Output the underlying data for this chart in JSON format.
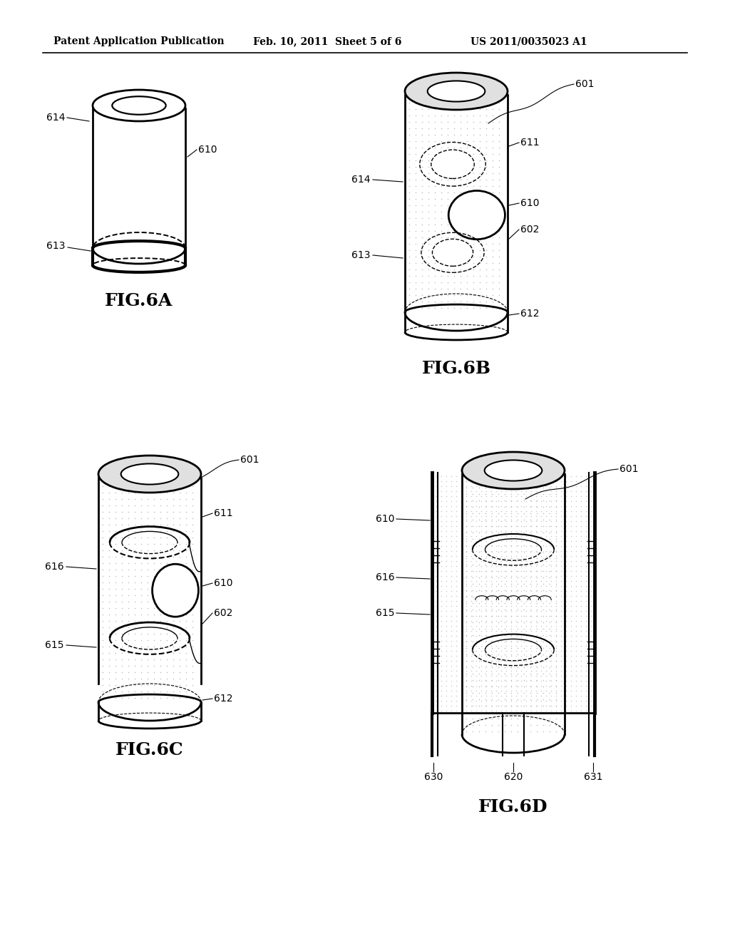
{
  "header_left": "Patent Application Publication",
  "header_mid": "Feb. 10, 2011  Sheet 5 of 6",
  "header_right": "US 2011/0035023 A1",
  "fig6a_label": "FIG.6A",
  "fig6b_label": "FIG.6B",
  "fig6c_label": "FIG.6C",
  "fig6d_label": "FIG.6D",
  "background_color": "#ffffff",
  "line_color": "#000000",
  "header_fontsize": 10,
  "annot_fontsize": 10,
  "fig_label_fontsize": 18
}
